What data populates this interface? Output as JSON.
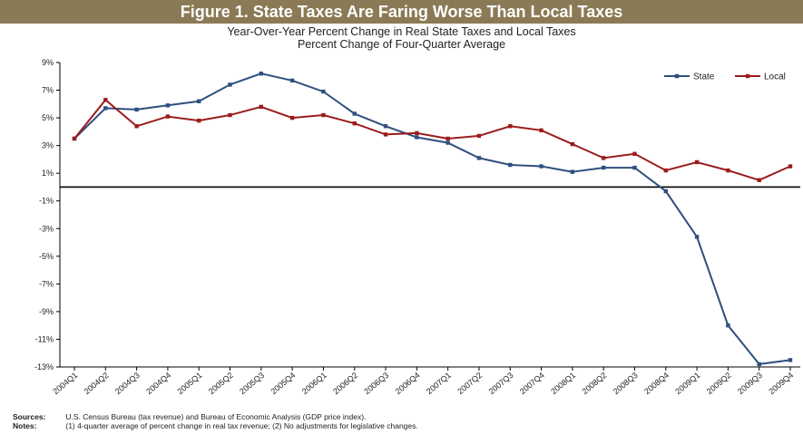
{
  "chart_data": {
    "type": "line",
    "title": "Figure 1. State Taxes Are Faring Worse Than Local Taxes",
    "subtitle": [
      "Year-Over-Year Percent Change in Real State Taxes and Local Taxes",
      "Percent Change of Four-Quarter Average"
    ],
    "xlabel": "",
    "ylabel": "",
    "categories": [
      "2004Q1",
      "2004Q2",
      "2004Q3",
      "2004Q4",
      "2005Q1",
      "2005Q2",
      "2005Q3",
      "2005Q4",
      "2006Q1",
      "2006Q2",
      "2006Q3",
      "2006Q4",
      "2007Q1",
      "2007Q2",
      "2007Q3",
      "2007Q4",
      "2008Q1",
      "2008Q2",
      "2008Q3",
      "2008Q4",
      "2009Q1",
      "2009Q2",
      "2009Q3",
      "2009Q4"
    ],
    "yticks": [
      "9%",
      "7%",
      "5%",
      "3%",
      "1%",
      "-1%",
      "-3%",
      "-5%",
      "-7%",
      "-9%",
      "-11%",
      "-13%"
    ],
    "ylim": [
      -13,
      9
    ],
    "series": [
      {
        "name": "State",
        "color": "#2f4f7f",
        "values": [
          3.5,
          5.7,
          5.6,
          5.9,
          6.2,
          7.4,
          8.2,
          7.7,
          6.9,
          5.3,
          4.4,
          3.6,
          3.2,
          2.1,
          1.6,
          1.5,
          1.1,
          1.4,
          1.4,
          -0.3,
          -3.6,
          -10.0,
          -12.8,
          -12.5
        ]
      },
      {
        "name": "Local",
        "color": "#9b1c1c",
        "values": [
          3.5,
          6.3,
          4.4,
          5.1,
          4.8,
          5.2,
          5.8,
          5.0,
          5.2,
          4.6,
          3.8,
          3.9,
          3.5,
          3.7,
          4.4,
          4.1,
          3.1,
          2.1,
          2.4,
          1.2,
          1.8,
          1.2,
          0.5,
          1.5
        ]
      }
    ],
    "legend_position": "top-right",
    "grid": false
  },
  "footnotes": {
    "sources_label": "Sources:",
    "sources_text": "U.S. Census Bureau (tax revenue) and Bureau of Economic Analysis (GDP price index).",
    "notes_label": "Notes:",
    "notes_text": "(1) 4-quarter average of percent change in real tax revenue; (2) No adjustments for legislative changes."
  },
  "colors": {
    "title_bar": "#8a7a55",
    "axis": "#000000"
  }
}
